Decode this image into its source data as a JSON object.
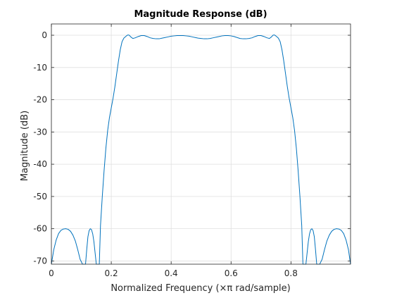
{
  "chart_data": {
    "type": "line",
    "title": "Magnitude Response (dB)",
    "xlabel": "Normalized Frequency (×π rad/sample)",
    "ylabel": "Magnitude (dB)",
    "xlim": [
      0,
      0.999
    ],
    "ylim": [
      -71,
      3.5
    ],
    "x_ticks": [
      0,
      0.2,
      0.4,
      0.6,
      0.8
    ],
    "x_tick_labels": [
      "0",
      "0.2",
      "0.4",
      "0.6",
      "0.8"
    ],
    "y_ticks": [
      0,
      -10,
      -20,
      -30,
      -40,
      -50,
      -60,
      -70
    ],
    "y_tick_labels": [
      "0",
      "-10",
      "-20",
      "-30",
      "-40",
      "-50",
      "-60",
      "-70"
    ],
    "grid": true,
    "colors": {
      "line": "#0072bd",
      "grid": "#dfdfdf",
      "axes": "#262626"
    },
    "series": [
      {
        "x": [
          0.0,
          0.008,
          0.016,
          0.024,
          0.032,
          0.04,
          0.048,
          0.056,
          0.064,
          0.072,
          0.08,
          0.088,
          0.096,
          0.104,
          0.11,
          0.114,
          0.118,
          0.122,
          0.126,
          0.13,
          0.134,
          0.138,
          0.142,
          0.146,
          0.15,
          0.155,
          0.16,
          0.164,
          0.17,
          0.176,
          0.182,
          0.188,
          0.194,
          0.2,
          0.206,
          0.212,
          0.218,
          0.224,
          0.23,
          0.236,
          0.242,
          0.248,
          0.252,
          0.256,
          0.26,
          0.265,
          0.272,
          0.28,
          0.29,
          0.3,
          0.31,
          0.32,
          0.33,
          0.34,
          0.35,
          0.36,
          0.37,
          0.38,
          0.39,
          0.4,
          0.41,
          0.42,
          0.43,
          0.44,
          0.45,
          0.46,
          0.47,
          0.48,
          0.49,
          0.5,
          0.51,
          0.52,
          0.53,
          0.54,
          0.55,
          0.56,
          0.57,
          0.58,
          0.59,
          0.6,
          0.61,
          0.62,
          0.63,
          0.64,
          0.65,
          0.66,
          0.67,
          0.68,
          0.69,
          0.7,
          0.71,
          0.72,
          0.728,
          0.735,
          0.74,
          0.744,
          0.748,
          0.752,
          0.758,
          0.764,
          0.77,
          0.776,
          0.782,
          0.788,
          0.794,
          0.8,
          0.806,
          0.812,
          0.818,
          0.824,
          0.83,
          0.836,
          0.84,
          0.845,
          0.85,
          0.854,
          0.858,
          0.862,
          0.866,
          0.87,
          0.874,
          0.878,
          0.882,
          0.886,
          0.89,
          0.896,
          0.904,
          0.912,
          0.92,
          0.928,
          0.936,
          0.944,
          0.952,
          0.96,
          0.968,
          0.976,
          0.984,
          0.992,
          0.999
        ],
        "y": [
          -71,
          -66.5,
          -63.5,
          -61.5,
          -60.5,
          -60.1,
          -60.0,
          -60.2,
          -60.8,
          -62.0,
          -63.8,
          -66.5,
          -69.5,
          -71,
          -71,
          -71,
          -66.5,
          -62.5,
          -60.6,
          -60.0,
          -60.3,
          -61.6,
          -64.0,
          -67.5,
          -71,
          -71,
          -71,
          -59.0,
          -50.0,
          -42.0,
          -35.0,
          -29.5,
          -25.5,
          -22.5,
          -19.5,
          -16.0,
          -12.0,
          -8.0,
          -4.5,
          -2.0,
          -0.9,
          -0.4,
          -0.1,
          0.1,
          0.0,
          -0.5,
          -1.0,
          -0.8,
          -0.4,
          -0.1,
          -0.1,
          -0.4,
          -0.8,
          -1.0,
          -1.1,
          -1.1,
          -0.9,
          -0.7,
          -0.5,
          -0.3,
          -0.2,
          -0.1,
          -0.1,
          -0.1,
          -0.2,
          -0.3,
          -0.5,
          -0.7,
          -0.9,
          -1.0,
          -1.1,
          -1.1,
          -1.0,
          -0.8,
          -0.6,
          -0.4,
          -0.2,
          -0.1,
          -0.1,
          -0.2,
          -0.4,
          -0.7,
          -1.0,
          -1.1,
          -1.1,
          -1.0,
          -0.8,
          -0.4,
          -0.1,
          -0.1,
          -0.4,
          -0.8,
          -1.0,
          -0.5,
          0.0,
          0.1,
          -0.1,
          -0.4,
          -0.9,
          -2.0,
          -4.5,
          -8.0,
          -12.0,
          -16.0,
          -19.5,
          -22.5,
          -25.5,
          -29.5,
          -35.0,
          -42.0,
          -50.0,
          -59.0,
          -71,
          -71,
          -71,
          -67.5,
          -64.0,
          -61.6,
          -60.3,
          -60.0,
          -60.6,
          -62.5,
          -66.5,
          -71,
          -71,
          -71,
          -69.5,
          -66.5,
          -63.8,
          -62.0,
          -60.8,
          -60.2,
          -60.0,
          -60.1,
          -60.5,
          -61.5,
          -63.5,
          -66.5,
          -71
        ]
      }
    ]
  }
}
